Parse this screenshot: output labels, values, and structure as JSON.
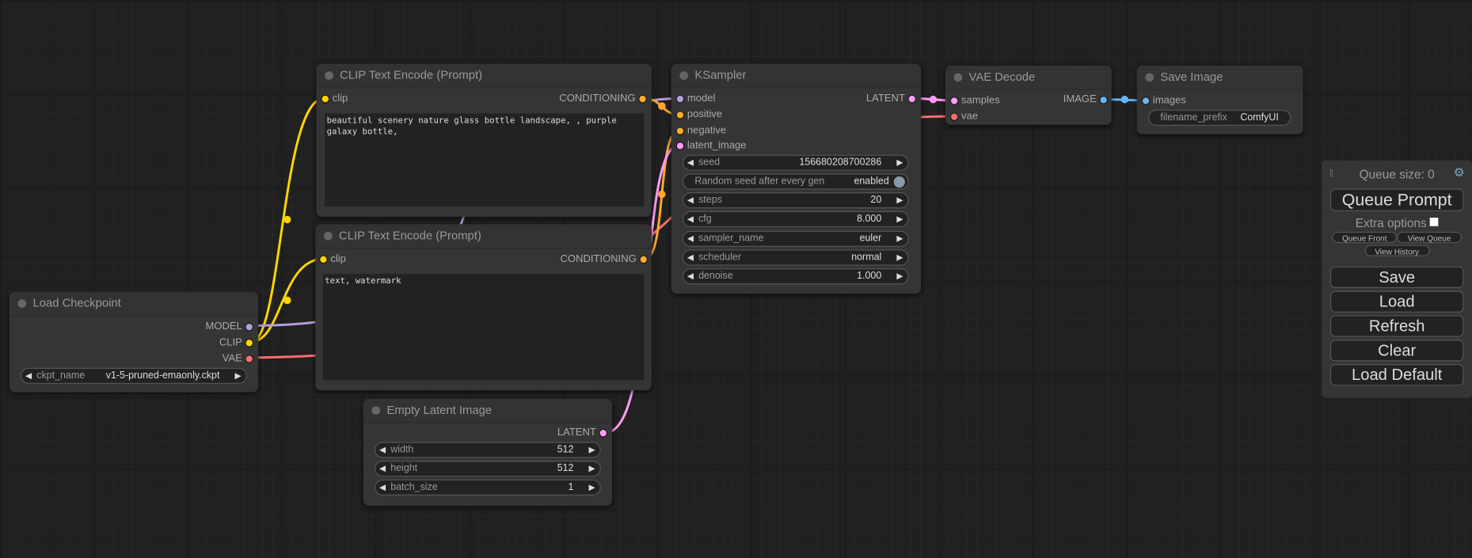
{
  "colors": {
    "model": "#b39ddb",
    "clip": "#ffd500",
    "vae": "#ff6e6e",
    "conditioning": "#ffa931",
    "latent": "#ff9cf9",
    "image": "#64b5f6"
  },
  "load_checkpoint": {
    "title": "Load Checkpoint",
    "outputs": [
      "MODEL",
      "CLIP",
      "VAE"
    ],
    "widget": {
      "label": "ckpt_name",
      "value": "v1-5-pruned-emaonly.ckpt"
    }
  },
  "clip_pos": {
    "title": "CLIP Text Encode (Prompt)",
    "input": "clip",
    "output": "CONDITIONING",
    "text": "beautiful scenery nature glass bottle landscape, , purple galaxy bottle,"
  },
  "clip_neg": {
    "title": "CLIP Text Encode (Prompt)",
    "input": "clip",
    "output": "CONDITIONING",
    "text": "text, watermark"
  },
  "empty_latent": {
    "title": "Empty Latent Image",
    "output": "LATENT",
    "widgets": [
      {
        "label": "width",
        "value": "512"
      },
      {
        "label": "height",
        "value": "512"
      },
      {
        "label": "batch_size",
        "value": "1"
      }
    ]
  },
  "ksampler": {
    "title": "KSampler",
    "inputs": [
      "model",
      "positive",
      "negative",
      "latent_image"
    ],
    "output": "LATENT",
    "seed": {
      "label": "seed",
      "value": "156680208700286"
    },
    "random_seed": {
      "label": "Random seed after every gen",
      "value": "enabled"
    },
    "widgets": [
      {
        "label": "steps",
        "value": "20"
      },
      {
        "label": "cfg",
        "value": "8.000"
      },
      {
        "label": "sampler_name",
        "value": "euler"
      },
      {
        "label": "scheduler",
        "value": "normal"
      },
      {
        "label": "denoise",
        "value": "1.000"
      }
    ]
  },
  "vae_decode": {
    "title": "VAE Decode",
    "inputs": [
      "samples",
      "vae"
    ],
    "output": "IMAGE"
  },
  "save_image": {
    "title": "Save Image",
    "input": "images",
    "widget": {
      "label": "filename_prefix",
      "value": "ComfyUI"
    }
  },
  "panel": {
    "queue_size": "Queue size: 0",
    "queue_prompt": "Queue Prompt",
    "extra_options": "Extra options",
    "extra_checked": false,
    "queue_front": "Queue Front",
    "view_queue": "View Queue",
    "view_history": "View History",
    "buttons": [
      "Save",
      "Load",
      "Refresh",
      "Clear",
      "Load Default"
    ]
  }
}
